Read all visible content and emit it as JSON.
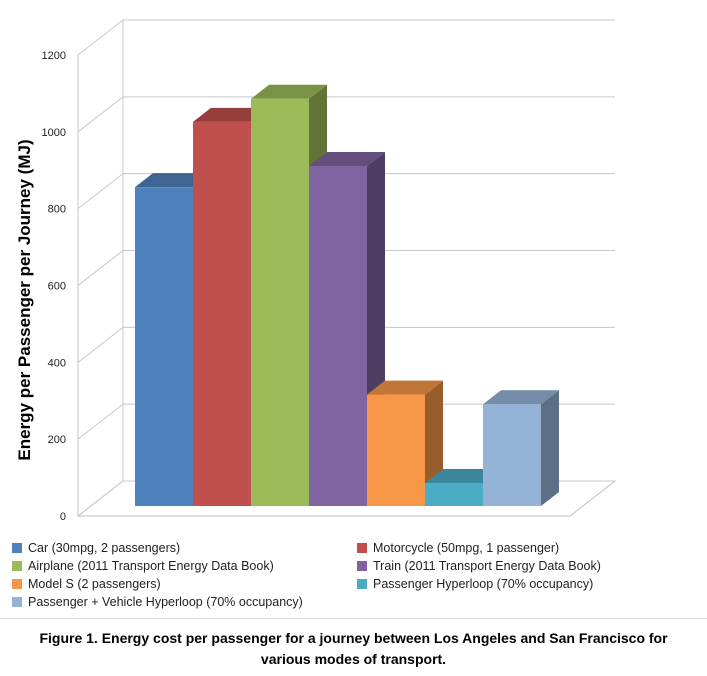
{
  "chart_data": {
    "type": "bar",
    "ylabel": "Energy per Passenger per Journey (MJ)",
    "ylim": [
      0,
      1200
    ],
    "yticks": [
      0,
      200,
      400,
      600,
      800,
      1000,
      1200
    ],
    "grid": true,
    "legend_position": "bottom",
    "series": [
      {
        "name": "Car  (30mpg, 2 passengers)",
        "value": 830,
        "color": "#4f81bd"
      },
      {
        "name": "Motorcycle  (50mpg, 1 passenger)",
        "value": 1000,
        "color": "#c0504d"
      },
      {
        "name": "Airplane  (2011 Transport Energy Data Book)",
        "value": 1060,
        "color": "#9bbb59"
      },
      {
        "name": "Train  (2011 Transport Energy Data Book)",
        "value": 885,
        "color": "#8064a2"
      },
      {
        "name": "Model S  (2 passengers)",
        "value": 290,
        "color": "#f79646"
      },
      {
        "name": "Passenger Hyperloop  (70% occupancy)",
        "value": 60,
        "color": "#4bacc6"
      },
      {
        "name": "Passenger + Vehicle Hyperloop  (70% occupancy)",
        "value": 265,
        "color": "#95b3d7"
      }
    ]
  },
  "caption": {
    "line1": "Figure 1. Energy cost per passenger for a journey between Los Angeles and San Francisco for",
    "line2": "various modes of transport."
  }
}
